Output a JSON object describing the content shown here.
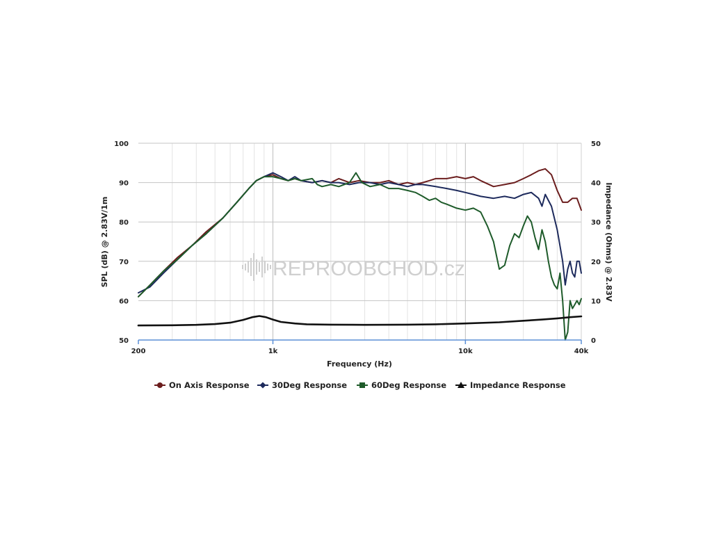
{
  "chart_data": {
    "type": "line",
    "xlabel": "Frequency (Hz)",
    "ylabel_left": "SPL (dB) @ 2.83V/1m",
    "ylabel_right": "Impedance (Ohms) @ 2.83V",
    "x_scale": "log",
    "xlim": [
      200,
      40000
    ],
    "ylim_left": [
      50,
      100
    ],
    "ylim_right": [
      0,
      50
    ],
    "x_ticks": [
      {
        "value": 200,
        "label": "200"
      },
      {
        "value": 1000,
        "label": "1k"
      },
      {
        "value": 10000,
        "label": "10k"
      },
      {
        "value": 40000,
        "label": "40k"
      }
    ],
    "y_ticks_left": [
      {
        "value": 50,
        "label": "50"
      },
      {
        "value": 60,
        "label": "60"
      },
      {
        "value": 70,
        "label": "70"
      },
      {
        "value": 80,
        "label": "80"
      },
      {
        "value": 90,
        "label": "90"
      },
      {
        "value": 100,
        "label": "100"
      }
    ],
    "y_ticks_right": [
      {
        "value": 0,
        "label": "0"
      },
      {
        "value": 10,
        "label": "10"
      },
      {
        "value": 20,
        "label": "20"
      },
      {
        "value": 30,
        "label": "30"
      },
      {
        "value": 40,
        "label": "40"
      },
      {
        "value": 50,
        "label": "50"
      }
    ],
    "grid": true,
    "legend_position": "bottom",
    "watermark": "REPROOBCHOD.cz",
    "series": [
      {
        "name": "On Axis Response",
        "color": "#6b1d1d",
        "axis": "left",
        "marker": "circle",
        "points": [
          [
            200,
            61
          ],
          [
            230,
            64
          ],
          [
            270,
            67.5
          ],
          [
            320,
            71
          ],
          [
            380,
            74
          ],
          [
            450,
            77.5
          ],
          [
            550,
            81
          ],
          [
            650,
            85
          ],
          [
            750,
            88.5
          ],
          [
            820,
            90.5
          ],
          [
            900,
            91.5
          ],
          [
            1000,
            92
          ],
          [
            1100,
            91
          ],
          [
            1200,
            90.5
          ],
          [
            1300,
            91
          ],
          [
            1400,
            90.5
          ],
          [
            1600,
            90
          ],
          [
            1800,
            90.5
          ],
          [
            2000,
            90
          ],
          [
            2200,
            91
          ],
          [
            2500,
            90
          ],
          [
            2800,
            90.5
          ],
          [
            3200,
            90
          ],
          [
            3600,
            90
          ],
          [
            4000,
            90.5
          ],
          [
            4500,
            89.5
          ],
          [
            5000,
            90
          ],
          [
            5500,
            89.5
          ],
          [
            6000,
            90
          ],
          [
            6500,
            90.5
          ],
          [
            7000,
            91
          ],
          [
            8000,
            91
          ],
          [
            9000,
            91.5
          ],
          [
            10000,
            91
          ],
          [
            11000,
            91.5
          ],
          [
            12000,
            90.5
          ],
          [
            14000,
            89
          ],
          [
            16000,
            89.5
          ],
          [
            18000,
            90
          ],
          [
            20000,
            91
          ],
          [
            22000,
            92
          ],
          [
            24000,
            93
          ],
          [
            26000,
            93.5
          ],
          [
            28000,
            92
          ],
          [
            30000,
            88
          ],
          [
            32000,
            85
          ],
          [
            34000,
            85
          ],
          [
            36000,
            86
          ],
          [
            38000,
            86
          ],
          [
            40000,
            83
          ]
        ]
      },
      {
        "name": "30Deg Response",
        "color": "#1d2a5c",
        "axis": "left",
        "marker": "diamond",
        "points": [
          [
            200,
            62
          ],
          [
            230,
            63.5
          ],
          [
            270,
            67
          ],
          [
            320,
            70.5
          ],
          [
            380,
            74
          ],
          [
            450,
            77
          ],
          [
            550,
            81
          ],
          [
            650,
            85
          ],
          [
            750,
            88.5
          ],
          [
            820,
            90.5
          ],
          [
            900,
            91.5
          ],
          [
            1000,
            92.5
          ],
          [
            1100,
            91.5
          ],
          [
            1200,
            90.5
          ],
          [
            1300,
            91.5
          ],
          [
            1400,
            90.5
          ],
          [
            1600,
            90
          ],
          [
            1800,
            90.5
          ],
          [
            2000,
            90
          ],
          [
            2200,
            90
          ],
          [
            2500,
            89.5
          ],
          [
            2800,
            90
          ],
          [
            3200,
            90
          ],
          [
            3600,
            89.5
          ],
          [
            4000,
            90
          ],
          [
            4500,
            89.5
          ],
          [
            5000,
            89
          ],
          [
            5500,
            89.5
          ],
          [
            6000,
            89.5
          ],
          [
            7000,
            89
          ],
          [
            8000,
            88.5
          ],
          [
            9000,
            88
          ],
          [
            10000,
            87.5
          ],
          [
            11000,
            87
          ],
          [
            12000,
            86.5
          ],
          [
            14000,
            86
          ],
          [
            16000,
            86.5
          ],
          [
            18000,
            86
          ],
          [
            20000,
            87
          ],
          [
            22000,
            87.5
          ],
          [
            24000,
            86
          ],
          [
            25000,
            84
          ],
          [
            26000,
            87
          ],
          [
            28000,
            84
          ],
          [
            30000,
            78
          ],
          [
            32000,
            70
          ],
          [
            33000,
            64
          ],
          [
            34000,
            68
          ],
          [
            35000,
            70
          ],
          [
            36000,
            67
          ],
          [
            37000,
            66
          ],
          [
            38000,
            70
          ],
          [
            39000,
            70
          ],
          [
            40000,
            67
          ]
        ]
      },
      {
        "name": "60Deg Response",
        "color": "#1e5b2a",
        "axis": "left",
        "marker": "square",
        "points": [
          [
            200,
            61
          ],
          [
            230,
            64
          ],
          [
            270,
            67.5
          ],
          [
            320,
            70.5
          ],
          [
            380,
            74
          ],
          [
            450,
            77
          ],
          [
            550,
            81
          ],
          [
            650,
            85
          ],
          [
            750,
            88.5
          ],
          [
            820,
            90.5
          ],
          [
            900,
            91.5
          ],
          [
            1000,
            91.5
          ],
          [
            1100,
            91
          ],
          [
            1200,
            90.5
          ],
          [
            1300,
            91
          ],
          [
            1400,
            90.5
          ],
          [
            1600,
            91
          ],
          [
            1700,
            89.5
          ],
          [
            1800,
            89
          ],
          [
            2000,
            89.5
          ],
          [
            2200,
            89
          ],
          [
            2500,
            90
          ],
          [
            2700,
            92.5
          ],
          [
            2900,
            90
          ],
          [
            3200,
            89
          ],
          [
            3600,
            89.5
          ],
          [
            4000,
            88.5
          ],
          [
            4500,
            88.5
          ],
          [
            5000,
            88
          ],
          [
            5500,
            87.5
          ],
          [
            6000,
            86.5
          ],
          [
            6500,
            85.5
          ],
          [
            7000,
            86
          ],
          [
            7500,
            85
          ],
          [
            8000,
            84.5
          ],
          [
            9000,
            83.5
          ],
          [
            10000,
            83
          ],
          [
            11000,
            83.5
          ],
          [
            12000,
            82.5
          ],
          [
            13000,
            79
          ],
          [
            14000,
            75
          ],
          [
            15000,
            68
          ],
          [
            16000,
            69
          ],
          [
            17000,
            74
          ],
          [
            18000,
            77
          ],
          [
            19000,
            76
          ],
          [
            20000,
            79
          ],
          [
            21000,
            81.5
          ],
          [
            22000,
            80
          ],
          [
            23000,
            76
          ],
          [
            24000,
            73
          ],
          [
            25000,
            78
          ],
          [
            26000,
            75
          ],
          [
            27000,
            70
          ],
          [
            28000,
            66
          ],
          [
            29000,
            64
          ],
          [
            30000,
            63
          ],
          [
            31000,
            67
          ],
          [
            32000,
            60
          ],
          [
            33000,
            50
          ],
          [
            34000,
            52
          ],
          [
            35000,
            60
          ],
          [
            36000,
            58
          ],
          [
            37000,
            59
          ],
          [
            38000,
            60
          ],
          [
            39000,
            59
          ],
          [
            40000,
            60.5
          ]
        ]
      },
      {
        "name": "Impedance Response",
        "color": "#111111",
        "axis": "right",
        "marker": "triangle",
        "points": [
          [
            200,
            3.7
          ],
          [
            300,
            3.75
          ],
          [
            400,
            3.85
          ],
          [
            500,
            4.05
          ],
          [
            600,
            4.4
          ],
          [
            700,
            5.1
          ],
          [
            780,
            5.8
          ],
          [
            850,
            6.1
          ],
          [
            920,
            5.8
          ],
          [
            1000,
            5.2
          ],
          [
            1100,
            4.6
          ],
          [
            1300,
            4.2
          ],
          [
            1500,
            4.0
          ],
          [
            2000,
            3.9
          ],
          [
            3000,
            3.85
          ],
          [
            5000,
            3.9
          ],
          [
            7000,
            4.0
          ],
          [
            10000,
            4.2
          ],
          [
            15000,
            4.5
          ],
          [
            20000,
            4.9
          ],
          [
            25000,
            5.2
          ],
          [
            30000,
            5.5
          ],
          [
            35000,
            5.8
          ],
          [
            40000,
            6.0
          ]
        ]
      }
    ]
  }
}
